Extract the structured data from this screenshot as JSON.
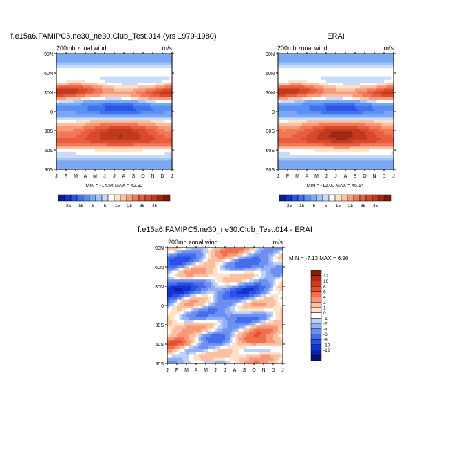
{
  "colors": {
    "panel_scale": [
      "#0a1e8c",
      "#1433c8",
      "#2a55e6",
      "#3f73f0",
      "#5c8ff2",
      "#7ba8f5",
      "#a3c4f7",
      "#c8dcf9",
      "#ffffff",
      "#fde3cc",
      "#fbc1a2",
      "#f79b7c",
      "#f2785a",
      "#e85e3f",
      "#d94a2b",
      "#c03a1f",
      "#9e2815",
      "#7a1a0d"
    ],
    "diff_scale": [
      "#0a0f7a",
      "#0c1fa8",
      "#1233d0",
      "#2a4ee6",
      "#466cee",
      "#6c8ff2",
      "#94b0f5",
      "#bdd0f8",
      "#ffffff",
      "#fde2c8",
      "#fbc0a2",
      "#f7987a",
      "#f0704e",
      "#e44e2e",
      "#d03a1e",
      "#b02a14",
      "#8a1c0c"
    ]
  },
  "panels": [
    {
      "title": "f.e15a6.FAMIPC5.ne30_ne30.Club_Test.014 (yrs 1979-1980)",
      "subtitle_left": "200mb zonal wind",
      "subtitle_right": "m/s",
      "stats": "MIN = -14.54 MAX =  42.92"
    },
    {
      "title": "ERAI",
      "subtitle_left": "200mb zonal wind",
      "subtitle_right": "m/s",
      "stats": "MIN = -12.00 MAX =  45.14"
    },
    {
      "title": "f.e15a6.FAMIPC5.ne30_ne30.Club_Test.014 - ERAI",
      "subtitle_left": "200mb zonal wind",
      "subtitle_right": "m/s",
      "stats": "MIN =  -7.13 MAX =   6.96"
    }
  ],
  "chart_data": [
    {
      "type": "heatmap",
      "title": "f.e15a6.FAMIPC5.ne30_ne30.Club_Test.014 (yrs 1979-1980)",
      "variable": "200mb zonal wind",
      "units": "m/s",
      "x_ticks": [
        "J",
        "F",
        "M",
        "A",
        "M",
        "J",
        "J",
        "A",
        "S",
        "O",
        "N",
        "D",
        "J"
      ],
      "y_ticks": [
        "90N",
        "60N",
        "30N",
        "0",
        "30S",
        "60S",
        "90S"
      ],
      "colorbar_ticks": [
        "-25",
        "-15",
        "-5",
        "5",
        "15",
        "25",
        "35",
        "45"
      ],
      "min": -14.54,
      "max": 42.92
    },
    {
      "type": "heatmap",
      "title": "ERAI",
      "variable": "200mb zonal wind",
      "units": "m/s",
      "x_ticks": [
        "J",
        "F",
        "M",
        "A",
        "M",
        "J",
        "J",
        "A",
        "S",
        "O",
        "N",
        "D",
        "J"
      ],
      "y_ticks": [
        "90N",
        "60N",
        "30N",
        "0",
        "30S",
        "60S",
        "90S"
      ],
      "colorbar_ticks": [
        "-25",
        "-15",
        "-5",
        "5",
        "15",
        "25",
        "35",
        "45"
      ],
      "min": -12.0,
      "max": 45.14
    },
    {
      "type": "heatmap",
      "title": "f.e15a6.FAMIPC5.ne30_ne30.Club_Test.014 - ERAI",
      "variable": "200mb zonal wind",
      "units": "m/s",
      "x_ticks": [
        "J",
        "F",
        "M",
        "A",
        "M",
        "J",
        "J",
        "A",
        "S",
        "O",
        "N",
        "D",
        "J"
      ],
      "y_ticks": [
        "90N",
        "60N",
        "30N",
        "0",
        "30S",
        "60S",
        "90S"
      ],
      "colorbar_ticks": [
        "12",
        "10",
        "8",
        "6",
        "4",
        "2",
        "1",
        "0",
        "-1",
        "-2",
        "-4",
        "-6",
        "-8",
        "-10",
        "-12"
      ],
      "min": -7.13,
      "max": 6.96
    }
  ]
}
